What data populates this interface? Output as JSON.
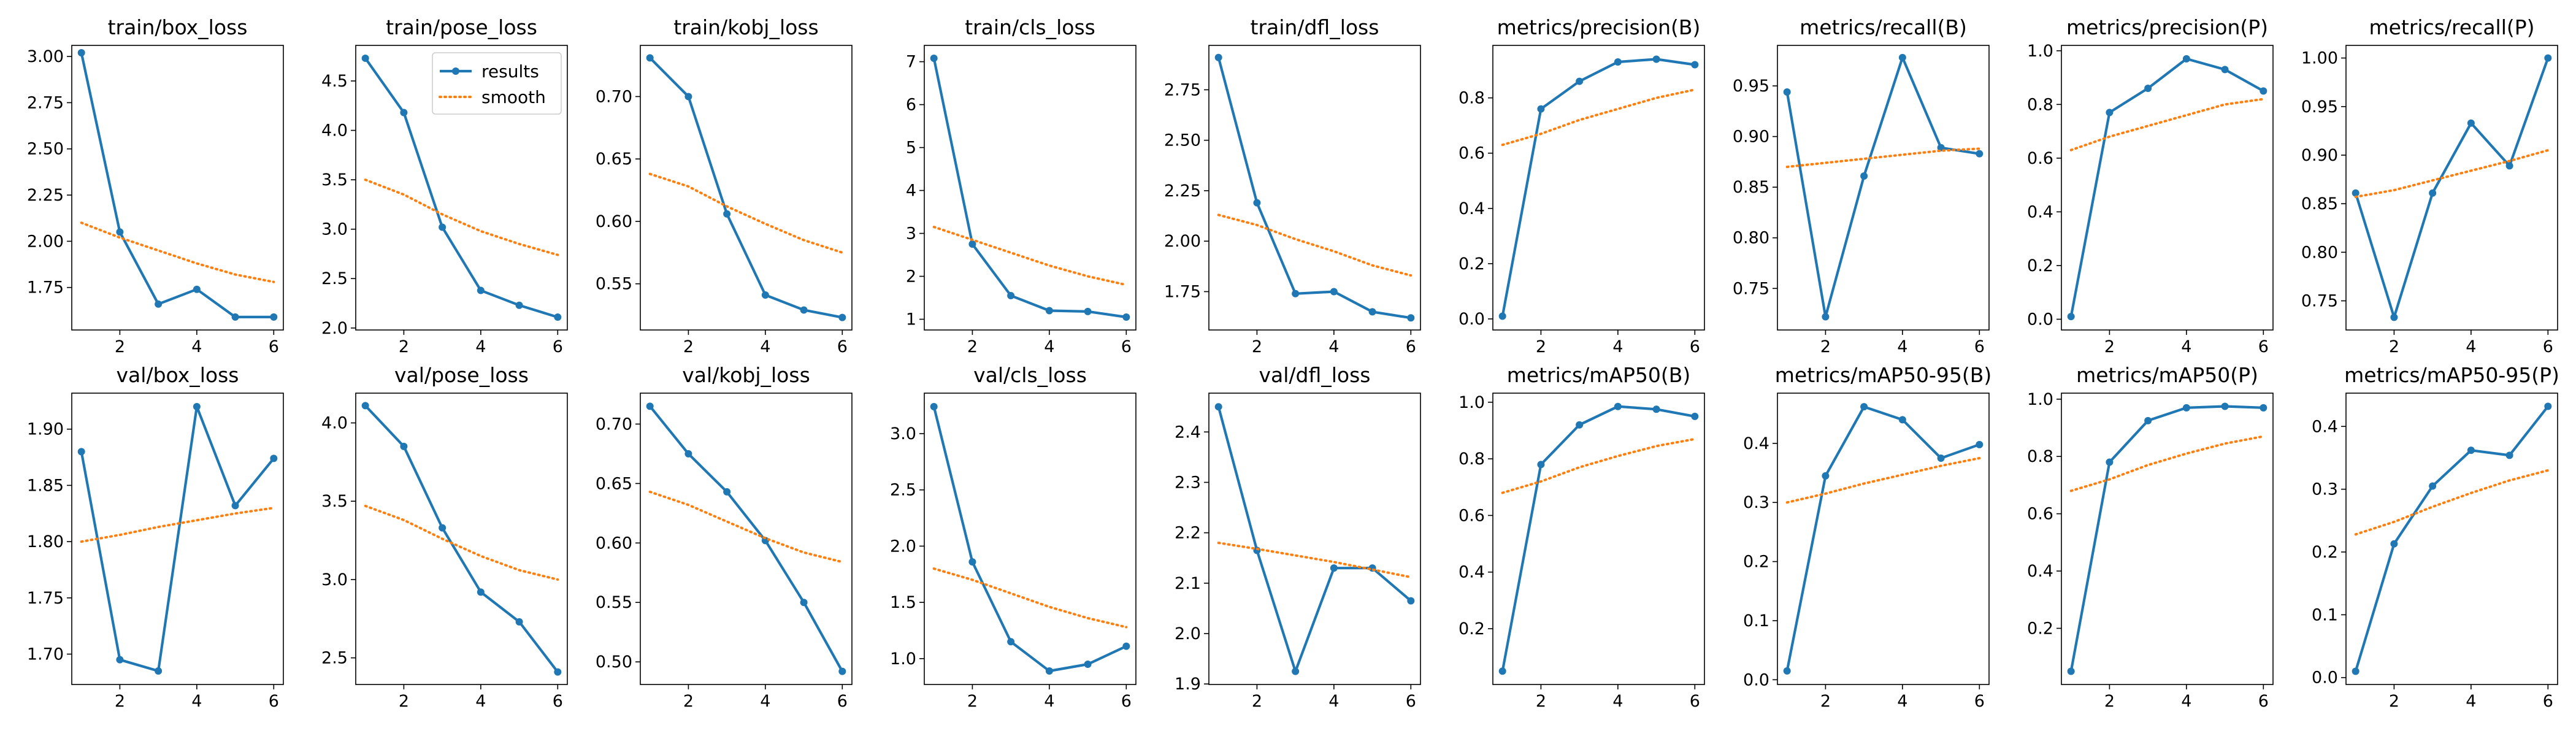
{
  "series_style": {
    "results_color": "#1f77b4",
    "smooth_color": "#ff7f0e"
  },
  "legend": {
    "results_label": "results",
    "smooth_label": "smooth",
    "placement": "top-right of train/pose_loss panel"
  },
  "chart_data": [
    {
      "type": "line",
      "title": "train/box_loss",
      "x": [
        1,
        2,
        3,
        4,
        5,
        6
      ],
      "series": [
        {
          "name": "results",
          "values": [
            3.02,
            2.05,
            1.66,
            1.74,
            1.59,
            1.59
          ]
        },
        {
          "name": "smooth",
          "values": [
            2.1,
            2.02,
            1.95,
            1.88,
            1.82,
            1.78
          ]
        }
      ],
      "xlim": [
        0.75,
        6.25
      ],
      "ylim": [
        1.52,
        3.06
      ],
      "xticks": [
        2,
        4,
        6
      ],
      "yticks": [
        1.75,
        2.0,
        2.25,
        2.5,
        2.75,
        3.0
      ],
      "xtick_labels": [
        "2",
        "4",
        "6"
      ],
      "ytick_labels": [
        "1.75",
        "2.00",
        "2.25",
        "2.50",
        "2.75",
        "3.00"
      ]
    },
    {
      "type": "line",
      "title": "train/pose_loss",
      "x": [
        1,
        2,
        3,
        4,
        5,
        6
      ],
      "series": [
        {
          "name": "results",
          "values": [
            4.73,
            4.18,
            3.02,
            2.38,
            2.23,
            2.11
          ]
        },
        {
          "name": "smooth",
          "values": [
            3.5,
            3.35,
            3.15,
            2.98,
            2.85,
            2.74
          ]
        }
      ],
      "xlim": [
        0.75,
        6.25
      ],
      "ylim": [
        1.98,
        4.86
      ],
      "xticks": [
        2,
        4,
        6
      ],
      "yticks": [
        2.0,
        2.5,
        3.0,
        3.5,
        4.0,
        4.5
      ],
      "xtick_labels": [
        "2",
        "4",
        "6"
      ],
      "ytick_labels": [
        "2.0",
        "2.5",
        "3.0",
        "3.5",
        "4.0",
        "4.5"
      ]
    },
    {
      "type": "line",
      "title": "train/kobj_loss",
      "x": [
        1,
        2,
        3,
        4,
        5,
        6
      ],
      "series": [
        {
          "name": "results",
          "values": [
            0.731,
            0.7,
            0.606,
            0.541,
            0.529,
            0.523
          ]
        },
        {
          "name": "smooth",
          "values": [
            0.638,
            0.628,
            0.612,
            0.598,
            0.585,
            0.575
          ]
        }
      ],
      "xlim": [
        0.75,
        6.25
      ],
      "ylim": [
        0.513,
        0.741
      ],
      "xticks": [
        2,
        4,
        6
      ],
      "yticks": [
        0.55,
        0.6,
        0.65,
        0.7
      ],
      "xtick_labels": [
        "2",
        "4",
        "6"
      ],
      "ytick_labels": [
        "0.55",
        "0.60",
        "0.65",
        "0.70"
      ]
    },
    {
      "type": "line",
      "title": "train/cls_loss",
      "x": [
        1,
        2,
        3,
        4,
        5,
        6
      ],
      "series": [
        {
          "name": "results",
          "values": [
            7.08,
            2.75,
            1.55,
            1.2,
            1.18,
            1.05
          ]
        },
        {
          "name": "smooth",
          "values": [
            3.15,
            2.85,
            2.55,
            2.25,
            2.0,
            1.8
          ]
        }
      ],
      "xlim": [
        0.75,
        6.25
      ],
      "ylim": [
        0.75,
        7.38
      ],
      "xticks": [
        2,
        4,
        6
      ],
      "yticks": [
        1,
        2,
        3,
        4,
        5,
        6,
        7
      ],
      "xtick_labels": [
        "2",
        "4",
        "6"
      ],
      "ytick_labels": [
        "1",
        "2",
        "3",
        "4",
        "5",
        "6",
        "7"
      ]
    },
    {
      "type": "line",
      "title": "train/dfl_loss",
      "x": [
        1,
        2,
        3,
        4,
        5,
        6
      ],
      "series": [
        {
          "name": "results",
          "values": [
            2.91,
            2.19,
            1.74,
            1.75,
            1.65,
            1.62
          ]
        },
        {
          "name": "smooth",
          "values": [
            2.13,
            2.08,
            2.01,
            1.95,
            1.88,
            1.83
          ]
        }
      ],
      "xlim": [
        0.75,
        6.25
      ],
      "ylim": [
        1.56,
        2.97
      ],
      "xticks": [
        2,
        4,
        6
      ],
      "yticks": [
        1.75,
        2.0,
        2.25,
        2.5,
        2.75
      ],
      "xtick_labels": [
        "2",
        "4",
        "6"
      ],
      "ytick_labels": [
        "1.75",
        "2.00",
        "2.25",
        "2.50",
        "2.75"
      ]
    },
    {
      "type": "line",
      "title": "metrics/precision(B)",
      "x": [
        1,
        2,
        3,
        4,
        5,
        6
      ],
      "series": [
        {
          "name": "results",
          "values": [
            0.01,
            0.76,
            0.86,
            0.93,
            0.94,
            0.92
          ]
        },
        {
          "name": "smooth",
          "values": [
            0.63,
            0.67,
            0.72,
            0.76,
            0.8,
            0.83
          ]
        }
      ],
      "xlim": [
        0.75,
        6.25
      ],
      "ylim": [
        -0.04,
        0.99
      ],
      "xticks": [
        2,
        4,
        6
      ],
      "yticks": [
        0.0,
        0.2,
        0.4,
        0.6,
        0.8
      ],
      "xtick_labels": [
        "2",
        "4",
        "6"
      ],
      "ytick_labels": [
        "0.0",
        "0.2",
        "0.4",
        "0.6",
        "0.8"
      ]
    },
    {
      "type": "line",
      "title": "metrics/recall(B)",
      "x": [
        1,
        2,
        3,
        4,
        5,
        6
      ],
      "series": [
        {
          "name": "results",
          "values": [
            0.944,
            0.722,
            0.861,
            0.978,
            0.889,
            0.883
          ]
        },
        {
          "name": "smooth",
          "values": [
            0.87,
            0.874,
            0.878,
            0.882,
            0.886,
            0.888
          ]
        }
      ],
      "xlim": [
        0.75,
        6.25
      ],
      "ylim": [
        0.709,
        0.99
      ],
      "xticks": [
        2,
        4,
        6
      ],
      "yticks": [
        0.75,
        0.8,
        0.85,
        0.9,
        0.95
      ],
      "xtick_labels": [
        "2",
        "4",
        "6"
      ],
      "ytick_labels": [
        "0.75",
        "0.80",
        "0.85",
        "0.90",
        "0.95"
      ]
    },
    {
      "type": "line",
      "title": "metrics/precision(P)",
      "x": [
        1,
        2,
        3,
        4,
        5,
        6
      ],
      "series": [
        {
          "name": "results",
          "values": [
            0.01,
            0.77,
            0.86,
            0.97,
            0.93,
            0.85
          ]
        },
        {
          "name": "smooth",
          "values": [
            0.63,
            0.68,
            0.72,
            0.76,
            0.8,
            0.82
          ]
        }
      ],
      "xlim": [
        0.75,
        6.25
      ],
      "ylim": [
        -0.04,
        1.02
      ],
      "xticks": [
        2,
        4,
        6
      ],
      "yticks": [
        0.0,
        0.2,
        0.4,
        0.6,
        0.8,
        1.0
      ],
      "xtick_labels": [
        "2",
        "4",
        "6"
      ],
      "ytick_labels": [
        "0.0",
        "0.2",
        "0.4",
        "0.6",
        "0.8",
        "1.0"
      ]
    },
    {
      "type": "line",
      "title": "metrics/recall(P)",
      "x": [
        1,
        2,
        3,
        4,
        5,
        6
      ],
      "series": [
        {
          "name": "results",
          "values": [
            0.861,
            0.733,
            0.861,
            0.933,
            0.889,
            1.0
          ]
        },
        {
          "name": "smooth",
          "values": [
            0.857,
            0.864,
            0.874,
            0.884,
            0.894,
            0.905
          ]
        }
      ],
      "xlim": [
        0.75,
        6.25
      ],
      "ylim": [
        0.72,
        1.013
      ],
      "xticks": [
        2,
        4,
        6
      ],
      "yticks": [
        0.75,
        0.8,
        0.85,
        0.9,
        0.95,
        1.0
      ],
      "xtick_labels": [
        "2",
        "4",
        "6"
      ],
      "ytick_labels": [
        "0.75",
        "0.80",
        "0.85",
        "0.90",
        "0.95",
        "1.00"
      ]
    },
    {
      "type": "line",
      "title": "val/box_loss",
      "x": [
        1,
        2,
        3,
        4,
        5,
        6
      ],
      "series": [
        {
          "name": "results",
          "values": [
            1.88,
            1.695,
            1.685,
            1.92,
            1.832,
            1.874
          ]
        },
        {
          "name": "smooth",
          "values": [
            1.8,
            1.806,
            1.813,
            1.819,
            1.825,
            1.83
          ]
        }
      ],
      "xlim": [
        0.75,
        6.25
      ],
      "ylim": [
        1.673,
        1.932
      ],
      "xticks": [
        2,
        4,
        6
      ],
      "yticks": [
        1.7,
        1.75,
        1.8,
        1.85,
        1.9
      ],
      "xtick_labels": [
        "2",
        "4",
        "6"
      ],
      "ytick_labels": [
        "1.70",
        "1.75",
        "1.80",
        "1.85",
        "1.90"
      ]
    },
    {
      "type": "line",
      "title": "val/pose_loss",
      "x": [
        1,
        2,
        3,
        4,
        5,
        6
      ],
      "series": [
        {
          "name": "results",
          "values": [
            4.11,
            3.85,
            3.33,
            2.92,
            2.73,
            2.41
          ]
        },
        {
          "name": "smooth",
          "values": [
            3.47,
            3.38,
            3.26,
            3.15,
            3.06,
            3.0
          ]
        }
      ],
      "xlim": [
        0.75,
        6.25
      ],
      "ylim": [
        2.33,
        4.19
      ],
      "xticks": [
        2,
        4,
        6
      ],
      "yticks": [
        2.5,
        3.0,
        3.5,
        4.0
      ],
      "xtick_labels": [
        "2",
        "4",
        "6"
      ],
      "ytick_labels": [
        "2.5",
        "3.0",
        "3.5",
        "4.0"
      ]
    },
    {
      "type": "line",
      "title": "val/kobj_loss",
      "x": [
        1,
        2,
        3,
        4,
        5,
        6
      ],
      "series": [
        {
          "name": "results",
          "values": [
            0.715,
            0.675,
            0.643,
            0.602,
            0.55,
            0.492
          ]
        },
        {
          "name": "smooth",
          "values": [
            0.643,
            0.632,
            0.618,
            0.604,
            0.592,
            0.584
          ]
        }
      ],
      "xlim": [
        0.75,
        6.25
      ],
      "ylim": [
        0.481,
        0.726
      ],
      "xticks": [
        2,
        4,
        6
      ],
      "yticks": [
        0.5,
        0.55,
        0.6,
        0.65,
        0.7
      ],
      "xtick_labels": [
        "2",
        "4",
        "6"
      ],
      "ytick_labels": [
        "0.50",
        "0.55",
        "0.60",
        "0.65",
        "0.70"
      ]
    },
    {
      "type": "line",
      "title": "val/cls_loss",
      "x": [
        1,
        2,
        3,
        4,
        5,
        6
      ],
      "series": [
        {
          "name": "results",
          "values": [
            3.24,
            1.86,
            1.15,
            0.89,
            0.95,
            1.11
          ]
        },
        {
          "name": "smooth",
          "values": [
            1.8,
            1.7,
            1.58,
            1.46,
            1.36,
            1.28
          ]
        }
      ],
      "xlim": [
        0.75,
        6.25
      ],
      "ylim": [
        0.77,
        3.36
      ],
      "xticks": [
        2,
        4,
        6
      ],
      "yticks": [
        1.0,
        1.5,
        2.0,
        2.5,
        3.0
      ],
      "xtick_labels": [
        "2",
        "4",
        "6"
      ],
      "ytick_labels": [
        "1.0",
        "1.5",
        "2.0",
        "2.5",
        "3.0"
      ]
    },
    {
      "type": "line",
      "title": "val/dfl_loss",
      "x": [
        1,
        2,
        3,
        4,
        5,
        6
      ],
      "series": [
        {
          "name": "results",
          "values": [
            2.45,
            2.165,
            1.925,
            2.13,
            2.13,
            2.065
          ]
        },
        {
          "name": "smooth",
          "values": [
            2.18,
            2.168,
            2.155,
            2.142,
            2.127,
            2.112
          ]
        }
      ],
      "xlim": [
        0.75,
        6.25
      ],
      "ylim": [
        1.899,
        2.477
      ],
      "xticks": [
        2,
        4,
        6
      ],
      "yticks": [
        1.9,
        2.0,
        2.1,
        2.2,
        2.3,
        2.4
      ],
      "xtick_labels": [
        "2",
        "4",
        "6"
      ],
      "ytick_labels": [
        "1.9",
        "2.0",
        "2.1",
        "2.2",
        "2.3",
        "2.4"
      ]
    },
    {
      "type": "line",
      "title": "metrics/mAP50(B)",
      "x": [
        1,
        2,
        3,
        4,
        5,
        6
      ],
      "series": [
        {
          "name": "results",
          "values": [
            0.05,
            0.78,
            0.92,
            0.985,
            0.975,
            0.95
          ]
        },
        {
          "name": "smooth",
          "values": [
            0.68,
            0.72,
            0.77,
            0.81,
            0.845,
            0.87
          ]
        }
      ],
      "xlim": [
        0.75,
        6.25
      ],
      "ylim": [
        0.003,
        1.032
      ],
      "xticks": [
        2,
        4,
        6
      ],
      "yticks": [
        0.2,
        0.4,
        0.6,
        0.8,
        1.0
      ],
      "xtick_labels": [
        "2",
        "4",
        "6"
      ],
      "ytick_labels": [
        "0.2",
        "0.4",
        "0.6",
        "0.8",
        "1.0"
      ]
    },
    {
      "type": "line",
      "title": "metrics/mAP50-95(B)",
      "x": [
        1,
        2,
        3,
        4,
        5,
        6
      ],
      "series": [
        {
          "name": "results",
          "values": [
            0.015,
            0.345,
            0.462,
            0.44,
            0.375,
            0.398
          ]
        },
        {
          "name": "smooth",
          "values": [
            0.3,
            0.315,
            0.332,
            0.347,
            0.362,
            0.375
          ]
        }
      ],
      "xlim": [
        0.75,
        6.25
      ],
      "ylim": [
        -0.008,
        0.485
      ],
      "xticks": [
        2,
        4,
        6
      ],
      "yticks": [
        0.0,
        0.1,
        0.2,
        0.3,
        0.4
      ],
      "xtick_labels": [
        "2",
        "4",
        "6"
      ],
      "ytick_labels": [
        "0.0",
        "0.1",
        "0.2",
        "0.3",
        "0.4"
      ]
    },
    {
      "type": "line",
      "title": "metrics/mAP50(P)",
      "x": [
        1,
        2,
        3,
        4,
        5,
        6
      ],
      "series": [
        {
          "name": "results",
          "values": [
            0.05,
            0.78,
            0.925,
            0.97,
            0.975,
            0.97
          ]
        },
        {
          "name": "smooth",
          "values": [
            0.68,
            0.72,
            0.77,
            0.81,
            0.845,
            0.87
          ]
        }
      ],
      "xlim": [
        0.75,
        6.25
      ],
      "ylim": [
        0.004,
        1.021
      ],
      "xticks": [
        2,
        4,
        6
      ],
      "yticks": [
        0.2,
        0.4,
        0.6,
        0.8,
        1.0
      ],
      "xtick_labels": [
        "2",
        "4",
        "6"
      ],
      "ytick_labels": [
        "0.2",
        "0.4",
        "0.6",
        "0.8",
        "1.0"
      ]
    },
    {
      "type": "line",
      "title": "metrics/mAP50-95(P)",
      "x": [
        1,
        2,
        3,
        4,
        5,
        6
      ],
      "series": [
        {
          "name": "results",
          "values": [
            0.01,
            0.213,
            0.305,
            0.362,
            0.354,
            0.432
          ]
        },
        {
          "name": "smooth",
          "values": [
            0.228,
            0.248,
            0.272,
            0.294,
            0.314,
            0.33
          ]
        }
      ],
      "xlim": [
        0.75,
        6.25
      ],
      "ylim": [
        -0.011,
        0.453
      ],
      "xticks": [
        2,
        4,
        6
      ],
      "yticks": [
        0.0,
        0.1,
        0.2,
        0.3,
        0.4
      ],
      "xtick_labels": [
        "2",
        "4",
        "6"
      ],
      "ytick_labels": [
        "0.0",
        "0.1",
        "0.2",
        "0.3",
        "0.4"
      ]
    }
  ]
}
